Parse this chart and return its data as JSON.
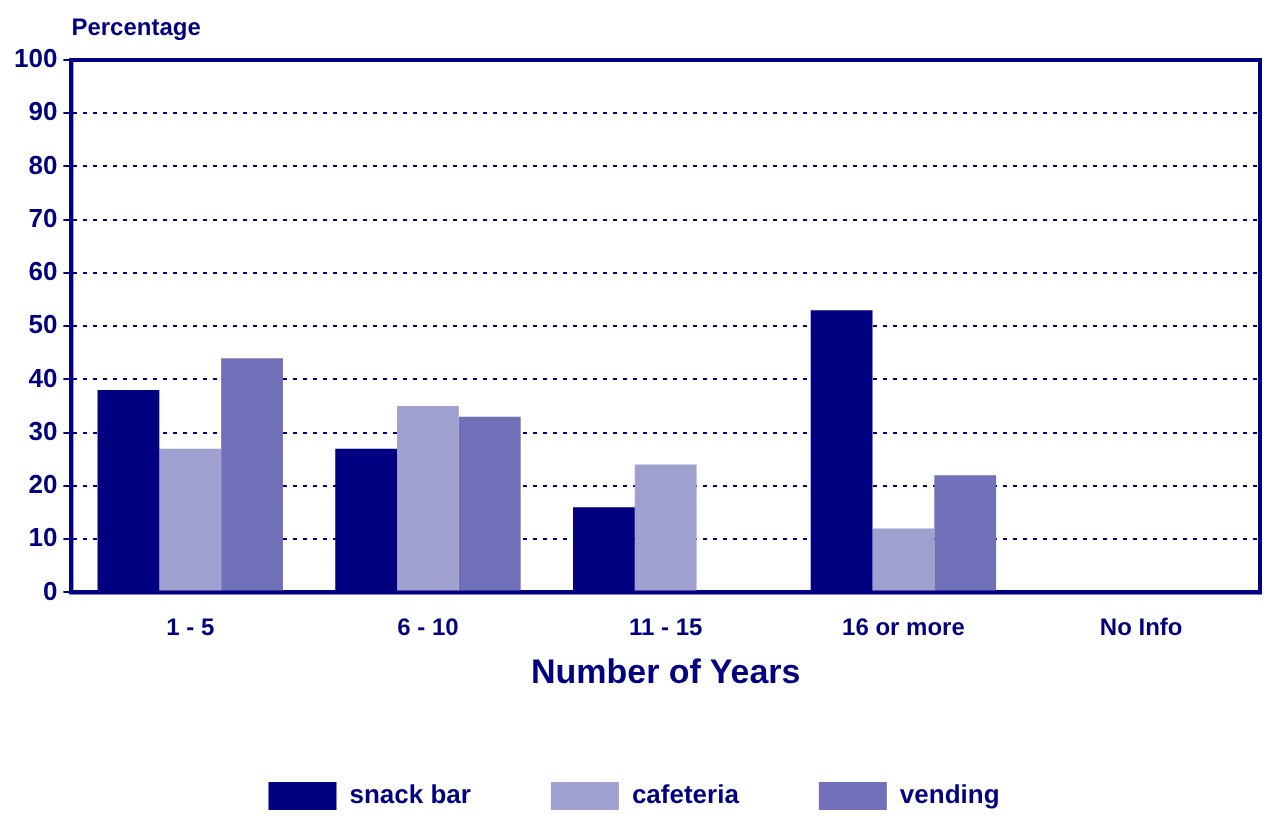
{
  "chart_data": {
    "type": "bar",
    "ylabel": "Percentage",
    "xlabel": "Number of Years",
    "categories": [
      "1 - 5",
      "6 - 10",
      "11 - 15",
      "16 or more",
      "No Info"
    ],
    "series": [
      {
        "name": "snack bar",
        "color": "#000080",
        "values": [
          38,
          27,
          16,
          53,
          0
        ]
      },
      {
        "name": "cafeteria",
        "color": "#a0a0d0",
        "values": [
          27,
          35,
          24,
          12,
          0
        ]
      },
      {
        "name": "vending",
        "color": "#7070b8",
        "values": [
          44,
          33,
          0,
          22,
          0
        ]
      }
    ],
    "ylim": [
      0,
      100
    ],
    "yticks": [
      0,
      10,
      20,
      30,
      40,
      50,
      60,
      70,
      80,
      90,
      100
    ],
    "grid": "y",
    "legend": "bottom"
  }
}
